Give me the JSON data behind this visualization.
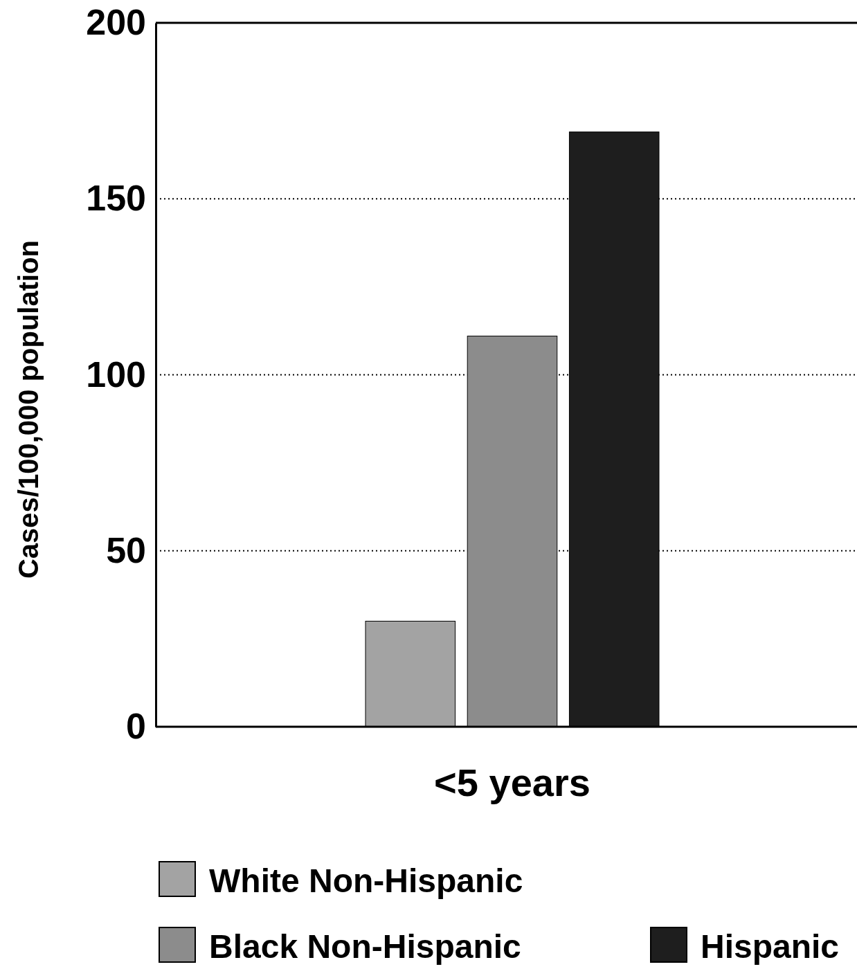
{
  "chart_data": {
    "type": "bar",
    "ylabel": "Cases/100,000 population",
    "categories": [
      "<5 years"
    ],
    "series": [
      {
        "name": "White Non-Hispanic",
        "color": "#a3a3a3",
        "values": [
          30
        ]
      },
      {
        "name": "Black Non-Hispanic",
        "color": "#8c8c8c",
        "values": [
          111
        ]
      },
      {
        "name": "Hispanic",
        "color": "#1e1e1e",
        "values": [
          169
        ]
      }
    ],
    "ylim": [
      0,
      200
    ],
    "yticks": [
      0,
      50,
      100,
      150,
      200
    ],
    "grid": "y",
    "legend": "bottom"
  }
}
